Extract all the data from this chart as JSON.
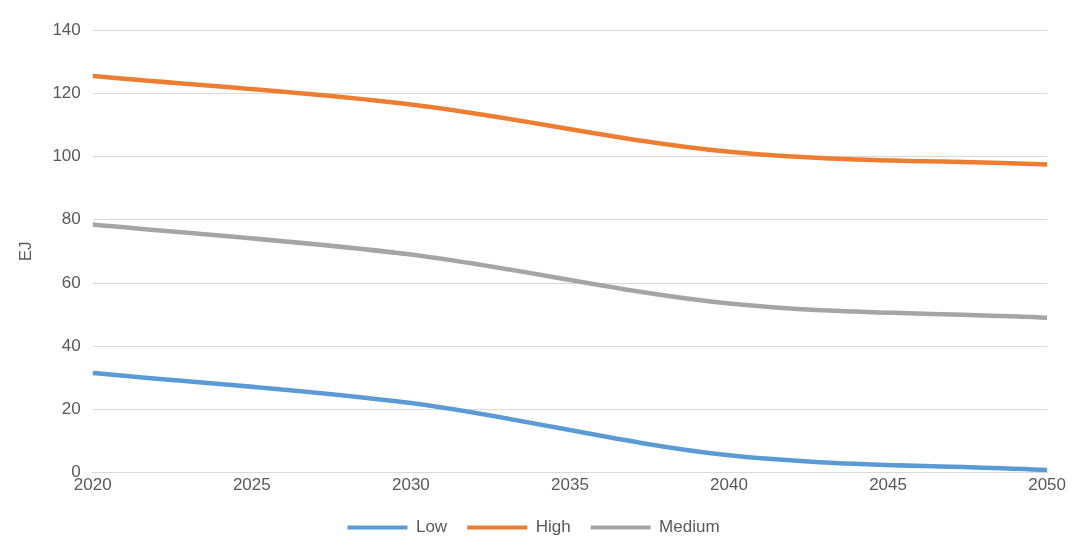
{
  "chart_data": {
    "type": "line",
    "ylabel": "EJ",
    "x": [
      2020,
      2030,
      2040,
      2050
    ],
    "series": [
      {
        "name": "Low",
        "color": "#5b9bd5",
        "values": [
          31.5,
          22,
          5.5,
          0.8
        ]
      },
      {
        "name": "High",
        "color": "#ed7d31",
        "values": [
          125.5,
          116.5,
          101.5,
          97.5
        ]
      },
      {
        "name": "Medium",
        "color": "#a5a5a5",
        "values": [
          78.5,
          69,
          53.5,
          49
        ]
      }
    ],
    "xlim": [
      2020,
      2050
    ],
    "xticks": [
      2020,
      2025,
      2030,
      2035,
      2040,
      2045,
      2050
    ],
    "ylim": [
      0,
      140
    ],
    "yticks": [
      0,
      20,
      40,
      60,
      80,
      100,
      120,
      140
    ],
    "grid": "y",
    "legend": "bottom",
    "marker": "none",
    "line_style": "solid"
  }
}
